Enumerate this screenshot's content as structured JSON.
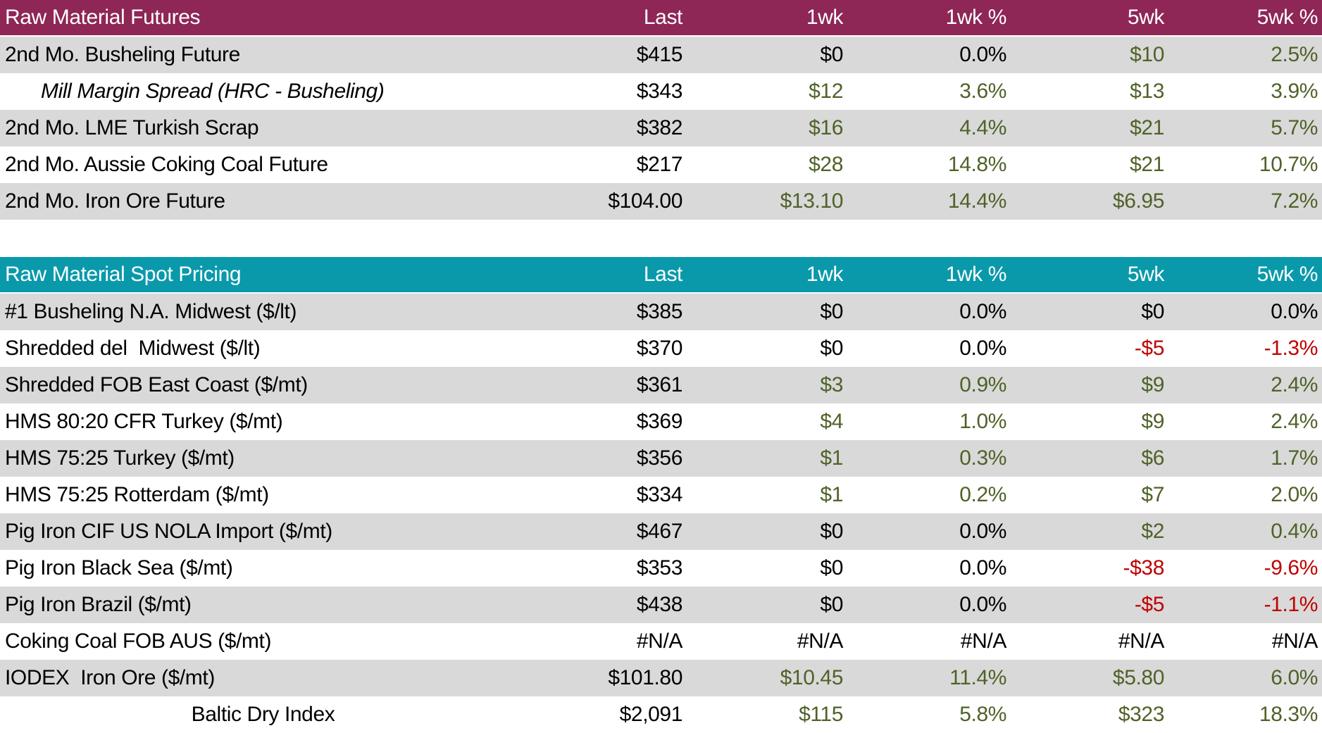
{
  "colors": {
    "futures_header_bg": "#8E2656",
    "spot_header_bg": "#0999AB",
    "stripe_bg": "#D9D9D9",
    "positive_text": "#4F6228",
    "negative_text": "#C00000",
    "neutral_text": "#000000",
    "header_text": "#FFFFFF"
  },
  "chart_data": [
    {
      "type": "table",
      "title": "Raw Material Futures",
      "columns": [
        "Last",
        "1wk",
        "1wk %",
        "5wk",
        "5wk %"
      ],
      "rows": [
        {
          "label": "2nd Mo. Busheling Future",
          "label_style": "normal",
          "values": [
            "$415",
            "$0",
            "0.0%",
            "$10",
            "2.5%"
          ],
          "tones": [
            "neu",
            "neu",
            "neu",
            "pos",
            "pos"
          ]
        },
        {
          "label": "Mill Margin Spread (HRC - Busheling)",
          "label_style": "italic",
          "values": [
            "$343",
            "$12",
            "3.6%",
            "$13",
            "3.9%"
          ],
          "tones": [
            "neu",
            "pos",
            "pos",
            "pos",
            "pos"
          ]
        },
        {
          "label": "2nd Mo. LME Turkish Scrap",
          "label_style": "normal",
          "values": [
            "$382",
            "$16",
            "4.4%",
            "$21",
            "5.7%"
          ],
          "tones": [
            "neu",
            "pos",
            "pos",
            "pos",
            "pos"
          ]
        },
        {
          "label": "2nd Mo. Aussie Coking Coal Future",
          "label_style": "normal",
          "values": [
            "$217",
            "$28",
            "14.8%",
            "$21",
            "10.7%"
          ],
          "tones": [
            "neu",
            "pos",
            "pos",
            "pos",
            "pos"
          ]
        },
        {
          "label": "2nd Mo. Iron Ore Future",
          "label_style": "normal",
          "values": [
            "$104.00",
            "$13.10",
            "14.4%",
            "$6.95",
            "7.2%"
          ],
          "tones": [
            "neu",
            "pos",
            "pos",
            "pos",
            "pos"
          ]
        }
      ]
    },
    {
      "type": "table",
      "title": "Raw Material Spot Pricing",
      "columns": [
        "Last",
        "1wk",
        "1wk %",
        "5wk",
        "5wk %"
      ],
      "rows": [
        {
          "label": "#1 Busheling N.A. Midwest ($/lt)",
          "label_style": "normal",
          "values": [
            "$385",
            "$0",
            "0.0%",
            "$0",
            "0.0%"
          ],
          "tones": [
            "neu",
            "neu",
            "neu",
            "neu",
            "neu"
          ]
        },
        {
          "label": "Shredded del  Midwest ($/lt)",
          "label_style": "normal",
          "values": [
            "$370",
            "$0",
            "0.0%",
            "-$5",
            "-1.3%"
          ],
          "tones": [
            "neu",
            "neu",
            "neu",
            "neg",
            "neg"
          ]
        },
        {
          "label": "Shredded FOB East Coast ($/mt)",
          "label_style": "normal",
          "values": [
            "$361",
            "$3",
            "0.9%",
            "$9",
            "2.4%"
          ],
          "tones": [
            "neu",
            "pos",
            "pos",
            "pos",
            "pos"
          ]
        },
        {
          "label": "HMS 80:20 CFR Turkey ($/mt)",
          "label_style": "normal",
          "values": [
            "$369",
            "$4",
            "1.0%",
            "$9",
            "2.4%"
          ],
          "tones": [
            "neu",
            "pos",
            "pos",
            "pos",
            "pos"
          ]
        },
        {
          "label": "HMS 75:25 Turkey ($/mt)",
          "label_style": "normal",
          "values": [
            "$356",
            "$1",
            "0.3%",
            "$6",
            "1.7%"
          ],
          "tones": [
            "neu",
            "pos",
            "pos",
            "pos",
            "pos"
          ]
        },
        {
          "label": "HMS 75:25 Rotterdam ($/mt)",
          "label_style": "normal",
          "values": [
            "$334",
            "$1",
            "0.2%",
            "$7",
            "2.0%"
          ],
          "tones": [
            "neu",
            "pos",
            "pos",
            "pos",
            "pos"
          ]
        },
        {
          "label": "Pig Iron CIF US NOLA Import ($/mt)",
          "label_style": "normal",
          "values": [
            "$467",
            "$0",
            "0.0%",
            "$2",
            "0.4%"
          ],
          "tones": [
            "neu",
            "neu",
            "neu",
            "pos",
            "pos"
          ]
        },
        {
          "label": "Pig Iron Black Sea ($/mt)",
          "label_style": "normal",
          "values": [
            "$353",
            "$0",
            "0.0%",
            "-$38",
            "-9.6%"
          ],
          "tones": [
            "neu",
            "neu",
            "neu",
            "neg",
            "neg"
          ]
        },
        {
          "label": "Pig Iron Brazil ($/mt)",
          "label_style": "normal",
          "values": [
            "$438",
            "$0",
            "0.0%",
            "-$5",
            "-1.1%"
          ],
          "tones": [
            "neu",
            "neu",
            "neu",
            "neg",
            "neg"
          ]
        },
        {
          "label": "Coking Coal FOB AUS ($/mt)",
          "label_style": "normal",
          "values": [
            "#N/A",
            "#N/A",
            "#N/A",
            "#N/A",
            "#N/A"
          ],
          "tones": [
            "neu",
            "neu",
            "neu",
            "neu",
            "neu"
          ]
        },
        {
          "label": "IODEX  Iron Ore ($/mt)",
          "label_style": "normal",
          "values": [
            "$101.80",
            "$10.45",
            "11.4%",
            "$5.80",
            "6.0%"
          ],
          "tones": [
            "neu",
            "pos",
            "pos",
            "pos",
            "pos"
          ]
        },
        {
          "label": "Baltic Dry Index",
          "label_style": "center",
          "values": [
            "$2,091",
            "$115",
            "5.8%",
            "$323",
            "18.3%"
          ],
          "tones": [
            "neu",
            "pos",
            "pos",
            "pos",
            "pos"
          ]
        }
      ]
    }
  ]
}
